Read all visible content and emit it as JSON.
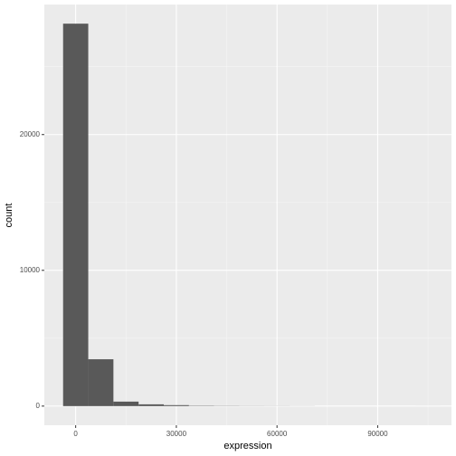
{
  "chart_data": {
    "type": "histogram",
    "x_label": "expression",
    "y_label": "count",
    "bins": [
      -3750,
      3750,
      11250,
      18750,
      26250,
      33750,
      41250,
      48750,
      56250,
      63750,
      71250,
      78750,
      86250,
      93750,
      101250,
      108750
    ],
    "values": [
      28170,
      3450,
      330,
      130,
      70,
      25,
      15,
      10,
      8,
      5,
      0,
      0,
      0,
      0,
      1
    ],
    "color": "#595959",
    "xlim": [
      -9340,
      111990
    ],
    "xticks": [
      0,
      30000,
      60000,
      90000
    ],
    "xminor": [
      15000,
      45000,
      75000,
      105000
    ],
    "ylim": [
      -1410,
      29580
    ],
    "yticks": [
      0,
      10000,
      20000
    ],
    "yminor": [
      5000,
      15000,
      25000
    ],
    "grid": true
  }
}
